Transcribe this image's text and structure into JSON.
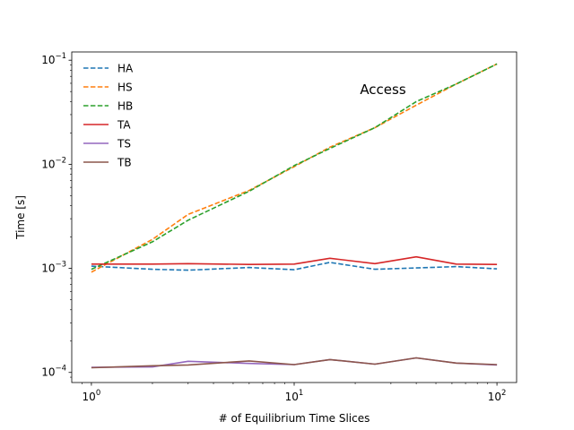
{
  "chart_data": {
    "type": "line",
    "xlabel": "# of Equilibrium Time Slices",
    "ylabel": "Time [s]",
    "annotation": "Access",
    "xscale": "log",
    "yscale": "log",
    "xlim": [
      0.8,
      125
    ],
    "ylim": [
      8e-05,
      0.12
    ],
    "x_ticks": [
      {
        "value": 1,
        "label": "10",
        "exp": "0"
      },
      {
        "value": 10,
        "label": "10",
        "exp": "1"
      },
      {
        "value": 100,
        "label": "10",
        "exp": "2"
      }
    ],
    "y_ticks": [
      {
        "value": 0.0001,
        "label": "10",
        "exp": "−4"
      },
      {
        "value": 0.001,
        "label": "10",
        "exp": "−3"
      },
      {
        "value": 0.01,
        "label": "10",
        "exp": "−2"
      },
      {
        "value": 0.1,
        "label": "10",
        "exp": "−1"
      }
    ],
    "grid": false,
    "legend_position": "upper-left",
    "x": [
      1,
      2,
      3,
      6,
      10,
      15,
      25,
      40,
      63,
      100
    ],
    "series": [
      {
        "name": "HA",
        "style": "dashed",
        "color": "#1f77b4",
        "values": [
          0.00105,
          0.00098,
          0.00096,
          0.00102,
          0.00097,
          0.00114,
          0.00098,
          0.00101,
          0.00104,
          0.00099
        ]
      },
      {
        "name": "HS",
        "style": "dashed",
        "color": "#ff7f0e",
        "values": [
          0.00092,
          0.0019,
          0.0033,
          0.0056,
          0.0095,
          0.0146,
          0.0225,
          0.037,
          0.059,
          0.092
        ]
      },
      {
        "name": "HB",
        "style": "dashed",
        "color": "#2ca02c",
        "values": [
          0.00098,
          0.0018,
          0.0029,
          0.0055,
          0.0097,
          0.0142,
          0.0225,
          0.04,
          0.059,
          0.092
        ]
      },
      {
        "name": "TA",
        "style": "solid",
        "color": "#d62728",
        "values": [
          0.0011,
          0.0011,
          0.00111,
          0.00109,
          0.0011,
          0.00125,
          0.00111,
          0.00129,
          0.0011,
          0.00109
        ]
      },
      {
        "name": "TS",
        "style": "solid",
        "color": "#9467bd",
        "values": [
          0.000112,
          0.000113,
          0.000128,
          0.000122,
          0.000119,
          0.000133,
          0.00012,
          0.000138,
          0.000123,
          0.000118
        ]
      },
      {
        "name": "TB",
        "style": "solid",
        "color": "#8c564b",
        "values": [
          0.000111,
          0.000116,
          0.000118,
          0.000129,
          0.000119,
          0.000133,
          0.00012,
          0.000138,
          0.000123,
          0.000119
        ]
      }
    ]
  }
}
